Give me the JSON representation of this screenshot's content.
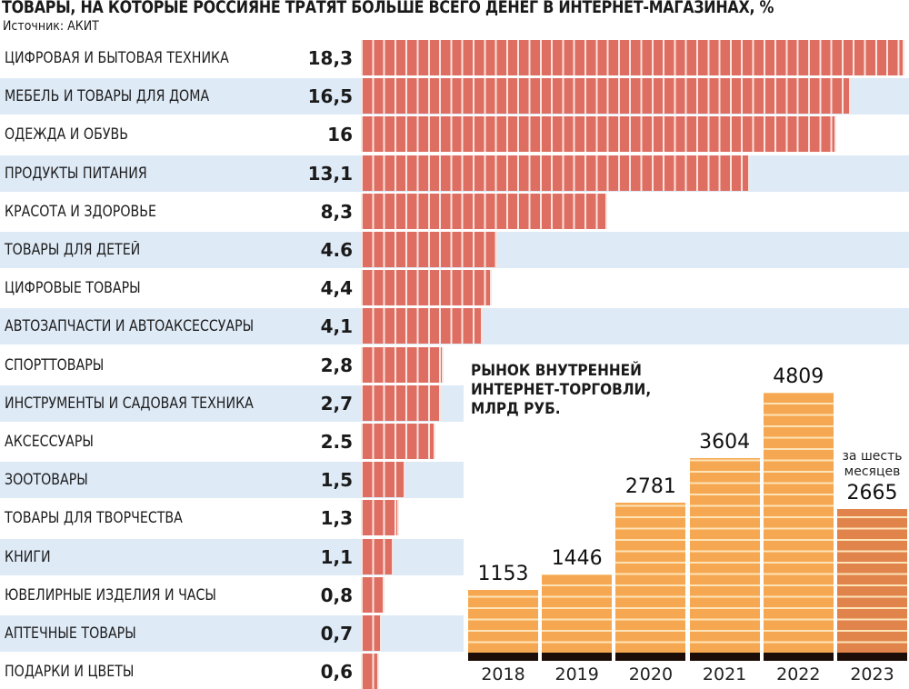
{
  "chart_data": [
    {
      "type": "bar",
      "orientation": "horizontal",
      "title": "ТОВАРЫ, НА КОТОРЫЕ РОССИЯНЕ ТРАТЯТ БОЛЬШЕ ВСЕГО ДЕНЕГ В ИНТЕРНЕТ-МАГАЗИНАХ, %",
      "subtitle": "Источник: АКИТ",
      "xlabel": "",
      "ylabel": "",
      "xlim": [
        0,
        18.3
      ],
      "grid": false,
      "legend": "none",
      "color": "#de6e62",
      "categories": [
        "ЦИФРОВАЯ И БЫТОВАЯ ТЕХНИКА",
        "МЕБЕЛЬ И ТОВАРЫ ДЛЯ ДОМА",
        "ОДЕЖДА И ОБУВЬ",
        "ПРОДУКТЫ ПИТАНИЯ",
        "КРАСОТА И ЗДОРОВЬЕ",
        "ТОВАРЫ ДЛЯ ДЕТЕЙ",
        "ЦИФРОВЫЕ ТОВАРЫ",
        "АВТОЗАПЧАСТИ И АВТОАКСЕССУАРЫ",
        "СПОРТТОВАРЫ",
        "ИНСТРУМЕНТЫ И САДОВАЯ ТЕХНИКА",
        "АКСЕССУАРЫ",
        "ЗООТОВАРЫ",
        "ТОВАРЫ ДЛЯ ТВОРЧЕСТВА",
        "КНИГИ",
        "ЮВЕЛИРНЫЕ ИЗДЕЛИЯ И ЧАСЫ",
        "АПТЕЧНЫЕ ТОВАРЫ",
        "ПОДАРКИ И ЦВЕТЫ"
      ],
      "values": [
        18.3,
        16.5,
        16,
        13.1,
        8.3,
        4.6,
        4.4,
        4.1,
        2.8,
        2.7,
        2.5,
        1.5,
        1.3,
        1.1,
        0.8,
        0.7,
        0.6
      ],
      "value_labels": [
        "18,3",
        "16,5",
        "16",
        "13,1",
        "8,3",
        "4.6",
        "4,4",
        "4,1",
        "2,8",
        "2,7",
        "2.5",
        "1,5",
        "1,3",
        "1,1",
        "0,8",
        "0,7",
        "0,6"
      ]
    },
    {
      "type": "bar",
      "orientation": "vertical",
      "title": "РЫНОК ВНУТРЕННЕЙ\nИНТЕРНЕТ-ТОРГОВЛИ,\nМЛРД РУБ.",
      "xlabel": "",
      "ylabel": "",
      "ylim": [
        0,
        4809
      ],
      "grid": false,
      "legend": "none",
      "categories": [
        "2018",
        "2019",
        "2020",
        "2021",
        "2022",
        "2023"
      ],
      "values": [
        1153,
        1446,
        2781,
        3604,
        4809,
        2665
      ],
      "value_labels": [
        "1153",
        "1446",
        "2781",
        "3604",
        "4809",
        "2665"
      ],
      "annotations": [
        {
          "category": "2023",
          "text": "за шесть\nмесяцев"
        }
      ],
      "colors": {
        "full_year": "#f5a851",
        "partial_year": "#e0844c",
        "baseline": "#1c0d08"
      }
    }
  ]
}
